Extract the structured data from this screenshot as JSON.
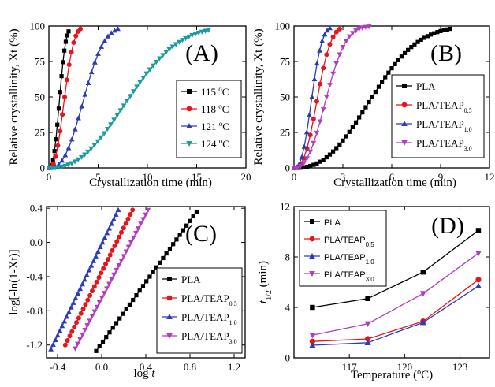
{
  "chart_data": [
    {
      "panel_label": "(A)",
      "type": "scatter",
      "xlabel": "Crystallization time (min)",
      "ylabel": "Relative crystallinity,  Xt (%)",
      "xlim": [
        0,
        20
      ],
      "ylim": [
        0,
        100
      ],
      "xticks": [
        0,
        5,
        10,
        15,
        20
      ],
      "yticks": [
        0,
        25,
        50,
        75,
        100
      ],
      "legend_position": "lower-right",
      "series": [
        {
          "name": "115",
          "unit": "°C",
          "color": "#000000",
          "marker": "square",
          "t_half": 1.1,
          "t_end": 2.0,
          "n": 2.6
        },
        {
          "name": "118",
          "unit": "°C",
          "color": "#e8141c",
          "marker": "circle",
          "t_half": 1.6,
          "t_end": 3.2,
          "n": 2.5
        },
        {
          "name": "121",
          "unit": "°C",
          "color": "#2a3bb5",
          "marker": "triangle-up",
          "t_half": 3.6,
          "t_end": 7.0,
          "n": 2.6
        },
        {
          "name": "124",
          "unit": "°C",
          "color": "#199c9a",
          "marker": "triangle-down",
          "t_half": 8.2,
          "t_end": 16.2,
          "n": 2.4
        }
      ]
    },
    {
      "panel_label": "(B)",
      "type": "scatter",
      "xlabel": "Crystallization time (min)",
      "ylabel": "Relative crystallinity,  Xt (%)",
      "xlim": [
        0,
        12
      ],
      "ylim": [
        0,
        100
      ],
      "xticks": [
        0,
        3,
        6,
        9,
        12
      ],
      "yticks": [
        0,
        25,
        50,
        75,
        100
      ],
      "legend_position": "lower-right",
      "series": [
        {
          "name": "PLA",
          "subscript": "",
          "color": "#000000",
          "marker": "square",
          "t_half": 4.8,
          "t_end": 9.6,
          "n": 2.5
        },
        {
          "name": "PLA/TEAP",
          "subscript": "0.5",
          "color": "#e8141c",
          "marker": "circle",
          "t_half": 1.45,
          "t_end": 2.8,
          "n": 2.6
        },
        {
          "name": "PLA/TEAP",
          "subscript": "1.0",
          "color": "#2a3bb5",
          "marker": "triangle-up",
          "t_half": 1.1,
          "t_end": 2.2,
          "n": 2.6
        },
        {
          "name": "PLA/TEAP",
          "subscript": "3.0",
          "color": "#b03cc0",
          "marker": "triangle-down",
          "t_half": 2.0,
          "t_end": 4.6,
          "n": 2.5
        }
      ]
    },
    {
      "panel_label": "(C)",
      "type": "scatter",
      "xlabel": "log t",
      "ylabel": "log[-ln(1-Xt)]",
      "xlim": [
        -0.5,
        1.3
      ],
      "ylim": [
        -1.35,
        0.42
      ],
      "xticks": [
        -0.4,
        0.0,
        0.4,
        0.8,
        1.2
      ],
      "yticks": [
        -1.2,
        -0.8,
        -0.4,
        0.0,
        0.4
      ],
      "legend_position": "lower-right",
      "series": [
        {
          "name": "PLA",
          "subscript": "",
          "color": "#000000",
          "marker": "square",
          "x_start": -0.05,
          "x_end": 0.86,
          "y_start": -1.27,
          "y_end": 0.36
        },
        {
          "name": "PLA/TEAP",
          "subscript": "0.5",
          "color": "#e8141c",
          "marker": "circle",
          "x_start": -0.33,
          "x_end": 0.28,
          "y_start": -1.2,
          "y_end": 0.38
        },
        {
          "name": "PLA/TEAP",
          "subscript": "1.0",
          "color": "#2a3bb5",
          "marker": "triangle-up",
          "x_start": -0.46,
          "x_end": 0.15,
          "y_start": -1.25,
          "y_end": 0.38
        },
        {
          "name": "PLA/TEAP",
          "subscript": "3.0",
          "color": "#b03cc0",
          "marker": "triangle-down",
          "x_start": -0.24,
          "x_end": 0.42,
          "y_start": -1.24,
          "y_end": 0.38
        }
      ]
    },
    {
      "panel_label": "(D)",
      "type": "line",
      "xlabel": "Temperature (°C)",
      "ylabel": "t1/2 (min)",
      "xlim": [
        114,
        124.6
      ],
      "ylim": [
        0,
        12
      ],
      "xticks": [
        117,
        120,
        123
      ],
      "yticks": [
        0,
        4,
        8,
        12
      ],
      "legend_position": "top-left",
      "x": [
        115,
        118,
        121,
        124
      ],
      "series": [
        {
          "name": "PLA",
          "subscript": "",
          "color": "#000000",
          "marker": "square",
          "values": [
            4.0,
            4.7,
            6.8,
            10.1
          ]
        },
        {
          "name": "PLA/TEAP",
          "subscript": "0.5",
          "color": "#e8141c",
          "marker": "circle",
          "values": [
            1.3,
            1.5,
            2.9,
            6.2
          ]
        },
        {
          "name": "PLA/TEAP",
          "subscript": "1.0",
          "color": "#2a3bb5",
          "marker": "triangle-up",
          "values": [
            1.0,
            1.2,
            2.8,
            5.7
          ]
        },
        {
          "name": "PLA/TEAP",
          "subscript": "3.0",
          "color": "#b03cc0",
          "marker": "triangle-down",
          "values": [
            1.8,
            2.7,
            5.1,
            8.3
          ]
        }
      ]
    }
  ]
}
